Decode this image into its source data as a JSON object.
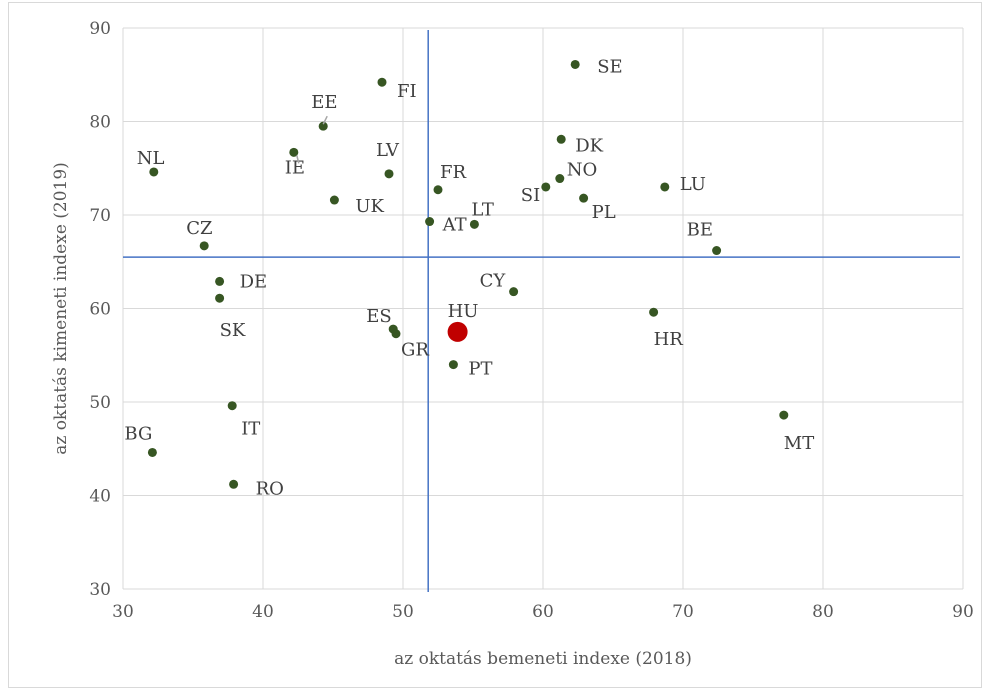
{
  "chart_data": {
    "type": "scatter",
    "title": "",
    "xlabel": "az oktatás bemeneti indexe (2018)",
    "ylabel": "az oktatás kimeneti indexe (2019)",
    "xlim": [
      30,
      90
    ],
    "ylim": [
      30,
      90
    ],
    "xticks": [
      30,
      40,
      50,
      60,
      70,
      80,
      90
    ],
    "yticks": [
      30,
      40,
      50,
      60,
      70,
      80,
      90
    ],
    "grid": true,
    "reference_lines": {
      "x": 51.8,
      "y": 65.5
    },
    "colors": {
      "point": "#375623",
      "highlight": "#c00000",
      "reference": "#4472c4",
      "grid": "#d9d9d9"
    },
    "points": [
      {
        "label": "SE",
        "x": 62.3,
        "y": 86.1
      },
      {
        "label": "FI",
        "x": 48.5,
        "y": 84.2
      },
      {
        "label": "EE",
        "x": 44.3,
        "y": 79.5
      },
      {
        "label": "DK",
        "x": 61.3,
        "y": 78.1
      },
      {
        "label": "IE",
        "x": 42.2,
        "y": 76.7
      },
      {
        "label": "NL",
        "x": 32.2,
        "y": 74.6
      },
      {
        "label": "LV",
        "x": 49.0,
        "y": 74.4
      },
      {
        "label": "NO",
        "x": 61.2,
        "y": 73.9
      },
      {
        "label": "SI",
        "x": 60.2,
        "y": 73.0
      },
      {
        "label": "LU",
        "x": 68.7,
        "y": 73.0
      },
      {
        "label": "FR",
        "x": 52.5,
        "y": 72.7
      },
      {
        "label": "PL",
        "x": 62.9,
        "y": 71.8
      },
      {
        "label": "UK",
        "x": 45.1,
        "y": 71.6
      },
      {
        "label": "AT",
        "x": 51.9,
        "y": 69.3
      },
      {
        "label": "LT",
        "x": 55.1,
        "y": 69.0
      },
      {
        "label": "CZ",
        "x": 35.8,
        "y": 66.7
      },
      {
        "label": "BE",
        "x": 72.4,
        "y": 66.2
      },
      {
        "label": "DE",
        "x": 36.9,
        "y": 62.9
      },
      {
        "label": "CY",
        "x": 57.9,
        "y": 61.8
      },
      {
        "label": "SK",
        "x": 36.9,
        "y": 61.1
      },
      {
        "label": "HR",
        "x": 67.9,
        "y": 59.6
      },
      {
        "label": "ES",
        "x": 49.3,
        "y": 57.8
      },
      {
        "label": "HU",
        "x": 53.9,
        "y": 57.5,
        "highlight": true
      },
      {
        "label": "GR",
        "x": 49.5,
        "y": 57.3
      },
      {
        "label": "PT",
        "x": 53.6,
        "y": 54.0
      },
      {
        "label": "IT",
        "x": 37.8,
        "y": 49.6
      },
      {
        "label": "MT",
        "x": 77.2,
        "y": 48.6
      },
      {
        "label": "BG",
        "x": 32.1,
        "y": 44.6
      },
      {
        "label": "RO",
        "x": 37.9,
        "y": 41.2
      }
    ]
  }
}
